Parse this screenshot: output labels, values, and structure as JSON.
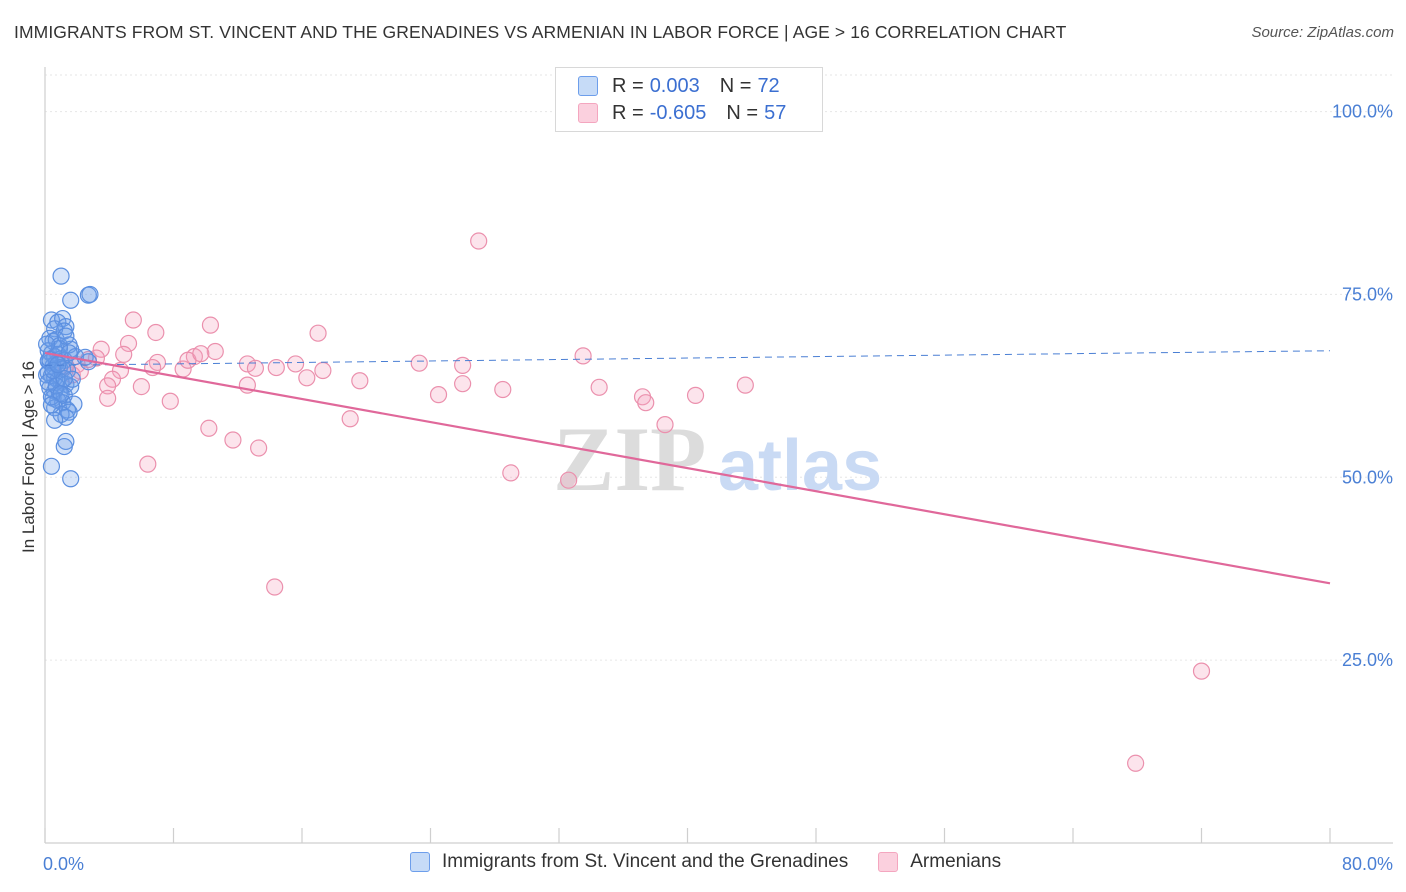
{
  "header": {
    "title": "IMMIGRANTS FROM ST. VINCENT AND THE GRENADINES VS ARMENIAN IN LABOR FORCE | AGE > 16 CORRELATION CHART",
    "source": "Source: ZipAtlas.com"
  },
  "watermark": {
    "zip": "ZIP",
    "atlas": "atlas"
  },
  "legend": {
    "r_label": "R =",
    "n_label": "N =",
    "blue": {
      "r": "0.003",
      "n": "72",
      "color": "#6d9eeb"
    },
    "pink": {
      "r": "-0.605",
      "n": "57",
      "color": "#f4a6bf"
    }
  },
  "chart_data": {
    "type": "scatter",
    "title": "IMMIGRANTS FROM ST. VINCENT AND THE GRENADINES VS ARMENIAN IN LABOR FORCE | AGE > 16 CORRELATION CHART",
    "ylabel": "In Labor Force | Age > 16",
    "xlabel": "",
    "xlim": [
      0,
      80
    ],
    "ylim": [
      0,
      105
    ],
    "x_tick_labels": [
      "0.0%",
      "80.0%"
    ],
    "y_tick_labels": [
      "100.0%",
      "75.0%",
      "50.0%",
      "25.0%"
    ],
    "y_ticks": [
      100,
      75,
      50,
      25
    ],
    "grid": true,
    "legend_position": "top-center",
    "series": [
      {
        "name": "Immigrants from St. Vincent and the Grenadines",
        "color": "#6d9eeb",
        "trend": {
          "x": [
            0,
            80
          ],
          "y": [
            65.3,
            67.3
          ],
          "style": "dashed"
        },
        "points": [
          [
            1.0,
            77.5
          ],
          [
            1.6,
            74.2
          ],
          [
            2.7,
            74.9
          ],
          [
            2.8,
            75.0
          ],
          [
            0.4,
            71.5
          ],
          [
            0.8,
            71.2
          ],
          [
            1.1,
            71.7
          ],
          [
            1.3,
            70.6
          ],
          [
            1.2,
            70.0
          ],
          [
            0.6,
            70.3
          ],
          [
            0.3,
            69.0
          ],
          [
            0.5,
            68.6
          ],
          [
            0.7,
            68.8
          ],
          [
            0.9,
            68.0
          ],
          [
            1.5,
            68.1
          ],
          [
            1.6,
            67.5
          ],
          [
            0.2,
            67.3
          ],
          [
            0.4,
            66.9
          ],
          [
            0.6,
            66.5
          ],
          [
            0.8,
            66.8
          ],
          [
            1.0,
            66.2
          ],
          [
            1.2,
            66.0
          ],
          [
            0.3,
            65.7
          ],
          [
            0.5,
            65.2
          ],
          [
            0.7,
            65.6
          ],
          [
            0.9,
            65.0
          ],
          [
            1.1,
            64.8
          ],
          [
            1.4,
            64.6
          ],
          [
            0.2,
            64.3
          ],
          [
            0.4,
            63.9
          ],
          [
            0.6,
            63.6
          ],
          [
            0.8,
            63.3
          ],
          [
            1.0,
            63.0
          ],
          [
            1.3,
            62.7
          ],
          [
            1.6,
            62.4
          ],
          [
            0.3,
            62.2
          ],
          [
            0.6,
            61.8
          ],
          [
            0.9,
            61.5
          ],
          [
            1.2,
            61.2
          ],
          [
            0.5,
            60.8
          ],
          [
            0.8,
            60.5
          ],
          [
            1.1,
            60.2
          ],
          [
            1.8,
            60.0
          ],
          [
            0.6,
            59.5
          ],
          [
            1.4,
            59.2
          ],
          [
            1.5,
            58.9
          ],
          [
            1.0,
            58.6
          ],
          [
            1.3,
            58.2
          ],
          [
            0.4,
            61.0
          ],
          [
            1.7,
            63.4
          ],
          [
            0.2,
            65.9
          ],
          [
            1.9,
            66.5
          ],
          [
            2.5,
            66.4
          ],
          [
            2.7,
            65.8
          ],
          [
            0.1,
            64.0
          ],
          [
            0.9,
            67.6
          ],
          [
            1.3,
            69.3
          ],
          [
            0.6,
            57.8
          ],
          [
            1.3,
            54.9
          ],
          [
            1.2,
            54.2
          ],
          [
            0.4,
            51.5
          ],
          [
            1.6,
            49.8
          ],
          [
            0.2,
            63.0
          ],
          [
            0.7,
            62.5
          ],
          [
            1.0,
            61.4
          ],
          [
            1.2,
            63.5
          ],
          [
            0.3,
            66.1
          ],
          [
            0.5,
            64.6
          ],
          [
            0.8,
            65.4
          ],
          [
            1.5,
            67.0
          ],
          [
            0.1,
            68.2
          ],
          [
            0.4,
            59.9
          ]
        ]
      },
      {
        "name": "Armenians",
        "color": "#f4a6bf",
        "trend": {
          "x": [
            0,
            80
          ],
          "y": [
            67.0,
            35.5
          ],
          "style": "solid"
        },
        "points": [
          [
            27.0,
            82.3
          ],
          [
            5.5,
            71.5
          ],
          [
            10.3,
            70.8
          ],
          [
            6.9,
            69.8
          ],
          [
            17.0,
            69.7
          ],
          [
            5.2,
            68.3
          ],
          [
            10.6,
            67.2
          ],
          [
            3.5,
            67.5
          ],
          [
            9.3,
            66.5
          ],
          [
            3.2,
            66.3
          ],
          [
            2.7,
            66.1
          ],
          [
            7.0,
            65.7
          ],
          [
            12.6,
            65.5
          ],
          [
            15.6,
            65.5
          ],
          [
            26.0,
            65.3
          ],
          [
            33.5,
            66.6
          ],
          [
            2.0,
            65.4
          ],
          [
            6.7,
            65.0
          ],
          [
            8.6,
            64.8
          ],
          [
            13.1,
            64.9
          ],
          [
            17.3,
            64.6
          ],
          [
            4.7,
            64.6
          ],
          [
            1.7,
            64.0
          ],
          [
            4.2,
            63.4
          ],
          [
            16.3,
            63.6
          ],
          [
            19.6,
            63.2
          ],
          [
            3.9,
            62.5
          ],
          [
            6.0,
            62.4
          ],
          [
            12.6,
            62.6
          ],
          [
            26.0,
            62.8
          ],
          [
            28.5,
            62.0
          ],
          [
            34.5,
            62.3
          ],
          [
            43.6,
            62.6
          ],
          [
            24.5,
            61.3
          ],
          [
            37.2,
            61.0
          ],
          [
            40.5,
            61.2
          ],
          [
            3.9,
            60.8
          ],
          [
            7.8,
            60.4
          ],
          [
            37.4,
            60.2
          ],
          [
            19.0,
            58.0
          ],
          [
            38.6,
            57.2
          ],
          [
            10.2,
            56.7
          ],
          [
            11.7,
            55.1
          ],
          [
            13.3,
            54.0
          ],
          [
            6.4,
            51.8
          ],
          [
            29.0,
            50.6
          ],
          [
            32.6,
            49.6
          ],
          [
            14.3,
            35.0
          ],
          [
            72.0,
            23.5
          ],
          [
            67.9,
            10.9
          ],
          [
            8.9,
            66.0
          ],
          [
            9.7,
            66.9
          ],
          [
            1.3,
            65.2
          ],
          [
            2.2,
            64.5
          ],
          [
            4.9,
            66.8
          ],
          [
            14.4,
            65.0
          ],
          [
            23.3,
            65.6
          ]
        ]
      }
    ]
  }
}
